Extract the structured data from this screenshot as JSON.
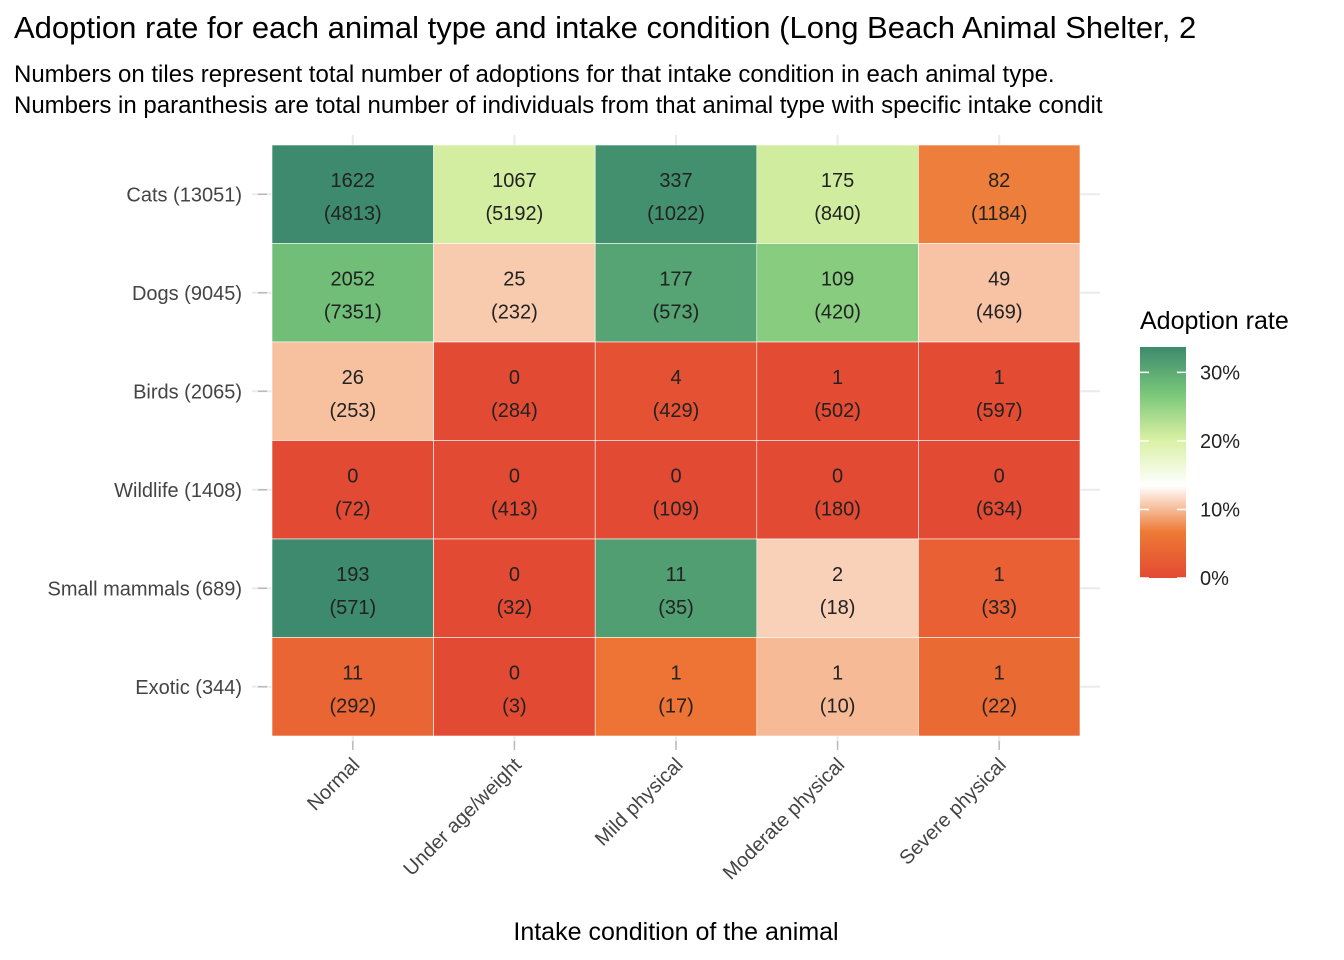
{
  "title": "Adoption rate for each animal type and intake condition (Long Beach Animal Shelter, 2",
  "subtitle_lines": [
    "Numbers on tiles represent total number of adoptions for that intake condition in each animal type.",
    "Numbers in paranthesis are total number of individuals from that animal type with specific intake condit"
  ],
  "chart_data": {
    "type": "heatmap",
    "xlabel": "Intake condition of the animal",
    "ylabel": "",
    "x_categories": [
      "Normal",
      "Under age/weight",
      "Mild physical",
      "Moderate physical",
      "Severe physical"
    ],
    "y_categories": [
      "Cats (13051)",
      "Dogs (9045)",
      "Birds (2065)",
      "Wildlife (1408)",
      "Small mammals (689)",
      "Exotic (344)"
    ],
    "adoptions": [
      [
        1622,
        1067,
        337,
        175,
        82
      ],
      [
        2052,
        25,
        177,
        109,
        49
      ],
      [
        26,
        0,
        4,
        1,
        1
      ],
      [
        0,
        0,
        0,
        0,
        0
      ],
      [
        193,
        0,
        11,
        2,
        1
      ],
      [
        11,
        0,
        1,
        1,
        1
      ]
    ],
    "totals": [
      [
        4813,
        5192,
        1022,
        840,
        1184
      ],
      [
        7351,
        232,
        573,
        420,
        469
      ],
      [
        253,
        284,
        429,
        502,
        597
      ],
      [
        72,
        413,
        109,
        180,
        634
      ],
      [
        571,
        32,
        35,
        18,
        33
      ],
      [
        292,
        3,
        17,
        10,
        22
      ]
    ],
    "legend": {
      "title": "Adoption rate",
      "ticks": [
        "0%",
        "10%",
        "20%",
        "30%"
      ],
      "tick_values": [
        0,
        0.1,
        0.2,
        0.3
      ],
      "range": [
        0,
        0.337
      ],
      "colors": [
        "#e34a33",
        "#ee7a35",
        "#ffffff",
        "#d9f0a3",
        "#78c679",
        "#3d8a6e"
      ]
    },
    "grid": true
  }
}
